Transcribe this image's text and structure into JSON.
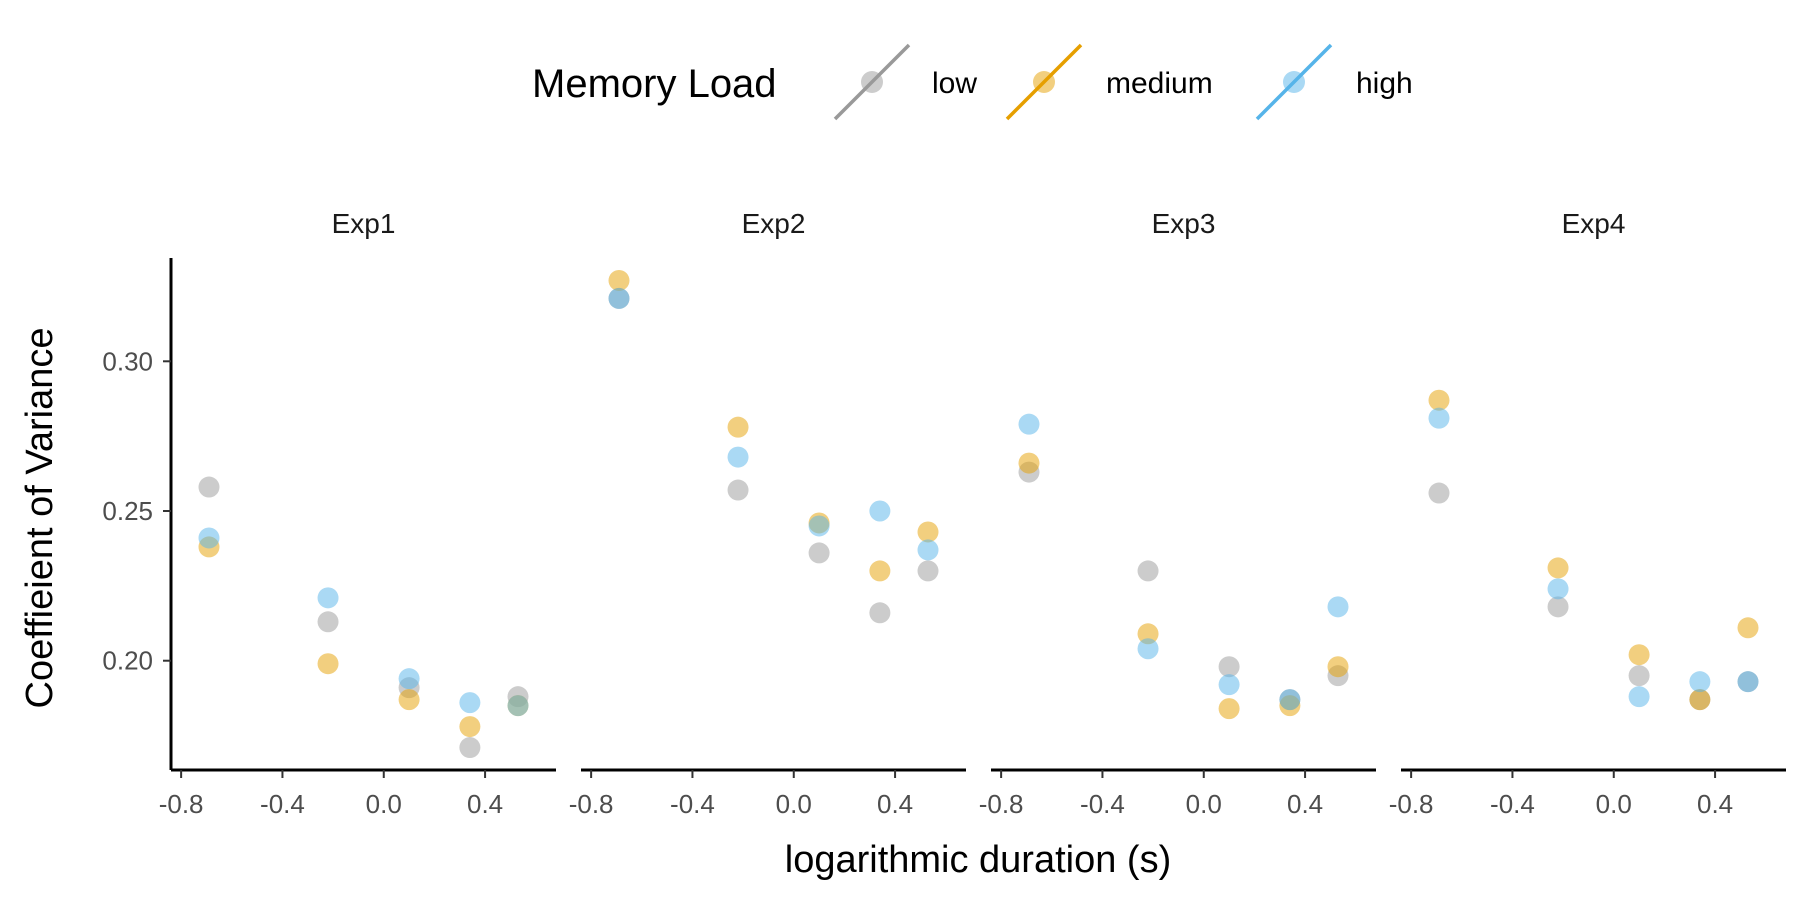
{
  "chart_data": {
    "type": "scatter",
    "xlabel": "logarithmic duration (s)",
    "ylabel": "Coeffieient of Variance",
    "xlim": [
      -0.84,
      0.68
    ],
    "ylim": [
      0.1635,
      0.3345
    ],
    "x_ticks": [
      -0.8,
      -0.4,
      0.0,
      0.4
    ],
    "x_tick_labels": [
      "-0.8",
      "-0.4",
      "0.0",
      "0.4"
    ],
    "y_ticks": [
      0.2,
      0.25,
      0.3
    ],
    "y_tick_labels": [
      "0.20",
      "0.25",
      "0.30"
    ],
    "grid": false,
    "legend": {
      "title": "Memory Load",
      "placement": "top",
      "entries": [
        {
          "key": "low",
          "label": "low",
          "color": "#999999"
        },
        {
          "key": "medium",
          "label": "medium",
          "color": "#E69F00"
        },
        {
          "key": "high",
          "label": "high",
          "color": "#56B4E9"
        }
      ]
    },
    "x": [
      -0.69,
      -0.22,
      0.1,
      0.34,
      0.53
    ],
    "panels": [
      {
        "title": "Exp1",
        "series": [
          {
            "name": "low",
            "values": [
              0.258,
              0.213,
              0.191,
              0.171,
              0.188
            ]
          },
          {
            "name": "medium",
            "values": [
              0.238,
              0.199,
              0.187,
              0.178,
              0.185
            ]
          },
          {
            "name": "high",
            "values": [
              0.241,
              0.221,
              0.194,
              0.186,
              0.185
            ]
          }
        ]
      },
      {
        "title": "Exp2",
        "series": [
          {
            "name": "low",
            "values": [
              0.321,
              0.257,
              0.236,
              0.216,
              0.23
            ]
          },
          {
            "name": "medium",
            "values": [
              0.327,
              0.278,
              0.246,
              0.23,
              0.243
            ]
          },
          {
            "name": "high",
            "values": [
              0.321,
              0.268,
              0.245,
              0.25,
              0.237
            ]
          }
        ]
      },
      {
        "title": "Exp3",
        "series": [
          {
            "name": "low",
            "values": [
              0.263,
              0.23,
              0.198,
              0.187,
              0.195
            ]
          },
          {
            "name": "medium",
            "values": [
              0.266,
              0.209,
              0.184,
              0.185,
              0.198
            ]
          },
          {
            "name": "high",
            "values": [
              0.279,
              0.204,
              0.192,
              0.187,
              0.218
            ]
          }
        ]
      },
      {
        "title": "Exp4",
        "series": [
          {
            "name": "low",
            "values": [
              0.256,
              0.218,
              0.195,
              0.187,
              0.193
            ]
          },
          {
            "name": "medium",
            "values": [
              0.287,
              0.231,
              0.202,
              0.187,
              0.211
            ]
          },
          {
            "name": "high",
            "values": [
              0.281,
              0.224,
              0.188,
              0.193,
              0.193
            ]
          }
        ]
      }
    ]
  }
}
